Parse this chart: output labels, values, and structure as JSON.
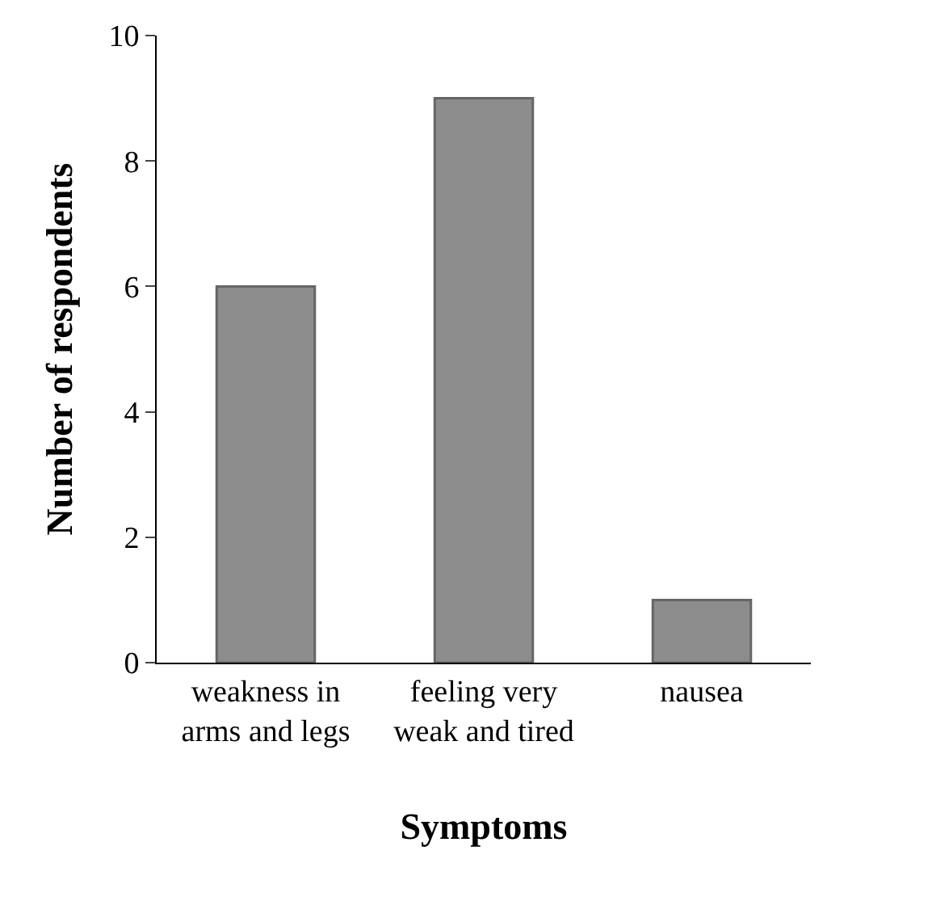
{
  "chart_data": {
    "type": "bar",
    "xlabel": "Symptoms",
    "ylabel": "Number of respondents",
    "categories": [
      "weakness in\narms and legs",
      "feeling very\nweak and tired",
      "nausea"
    ],
    "values": [
      6,
      9,
      1
    ],
    "color": "#8c8c8c",
    "ylim": [
      0,
      10
    ],
    "yticks": [
      0,
      2,
      4,
      6,
      8,
      10
    ],
    "legend": false
  }
}
